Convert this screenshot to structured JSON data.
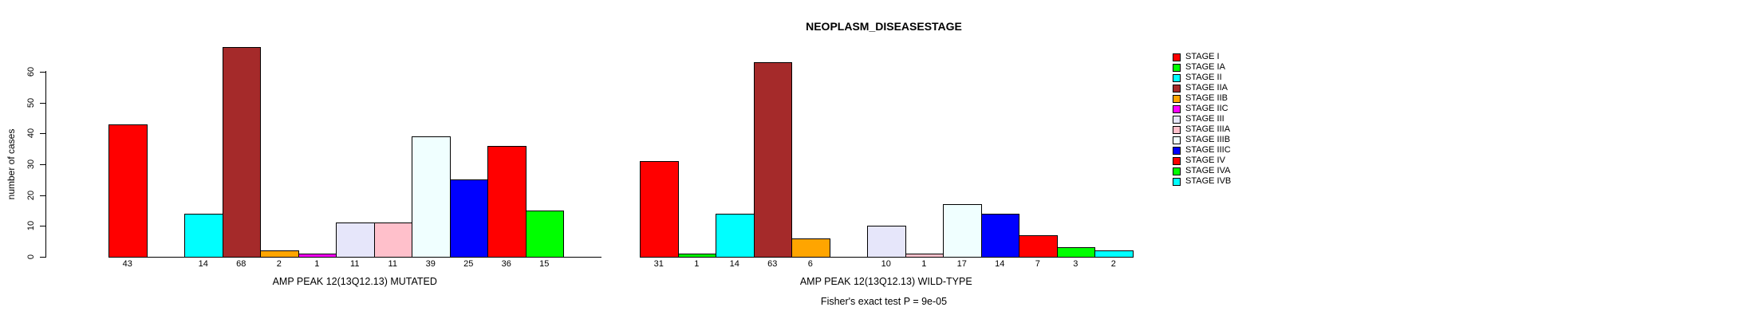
{
  "title": "NEOPLASM_DISEASESTAGE",
  "footer": "Fisher's exact test P = 9e-05",
  "y_axis": {
    "label": "number of cases",
    "ticks": [
      0,
      10,
      20,
      30,
      40,
      50,
      60
    ]
  },
  "legend": {
    "items": [
      {
        "label": "STAGE I",
        "color": "#FF0000"
      },
      {
        "label": "STAGE IA",
        "color": "#00FF00"
      },
      {
        "label": "STAGE II",
        "color": "#00FFFF"
      },
      {
        "label": "STAGE IIA",
        "color": "#A52A2A"
      },
      {
        "label": "STAGE IIB",
        "color": "#FFA500"
      },
      {
        "label": "STAGE IIC",
        "color": "#FF00FF"
      },
      {
        "label": "STAGE III",
        "color": "#E6E6FA"
      },
      {
        "label": "STAGE IIIA",
        "color": "#FFC0CB"
      },
      {
        "label": "STAGE IIIB",
        "color": "#F0FFFF"
      },
      {
        "label": "STAGE IIIC",
        "color": "#0000FF"
      },
      {
        "label": "STAGE IV",
        "color": "#FF0000"
      },
      {
        "label": "STAGE IVA",
        "color": "#00FF00"
      },
      {
        "label": "STAGE IVB",
        "color": "#00FFFF"
      }
    ]
  },
  "chart_data": {
    "type": "bar",
    "title": "NEOPLASM_DISEASESTAGE",
    "ylabel": "number of cases",
    "ylim": [
      0,
      60
    ],
    "grid": false,
    "legend_position": "right",
    "bar_value_labels_visible": true,
    "zero_value_bars_hidden": true,
    "categories": [
      "STAGE I",
      "STAGE IA",
      "STAGE II",
      "STAGE IIA",
      "STAGE IIB",
      "STAGE IIC",
      "STAGE III",
      "STAGE IIIA",
      "STAGE IIIB",
      "STAGE IIIC",
      "STAGE IV",
      "STAGE IVA",
      "STAGE IVB"
    ],
    "colors": [
      "#FF0000",
      "#00FF00",
      "#00FFFF",
      "#A52A2A",
      "#FFA500",
      "#FF00FF",
      "#E6E6FA",
      "#FFC0CB",
      "#F0FFFF",
      "#0000FF",
      "#FF0000",
      "#00FF00",
      "#00FFFF"
    ],
    "panels": [
      {
        "xlabel": "AMP PEAK 12(13Q12.13) MUTATED",
        "values": [
          43,
          0,
          14,
          68,
          2,
          1,
          11,
          11,
          39,
          25,
          36,
          15,
          0
        ]
      },
      {
        "xlabel": "AMP PEAK 12(13Q12.13) WILD-TYPE",
        "values": [
          31,
          1,
          14,
          63,
          6,
          0,
          10,
          1,
          17,
          14,
          7,
          3,
          2
        ]
      }
    ],
    "annotations": [
      "Fisher's exact test P = 9e-05"
    ]
  }
}
